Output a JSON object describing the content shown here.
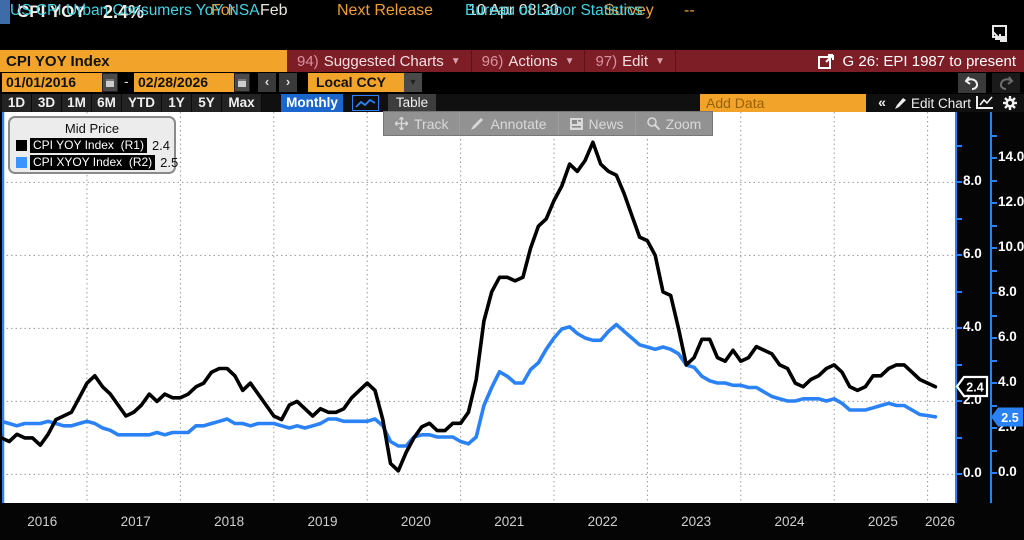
{
  "header": {
    "ticker": "CPI YOY",
    "value": "2.4%",
    "for_label": "For",
    "for_value": "Feb",
    "next_release_label": "Next Release",
    "next_release_value": "10 Apr 08:30",
    "survey_label": "Survey",
    "survey_value": "--",
    "description": "US CPI Urban Consumers YoY NSA",
    "source": "Bureau of Labor Statistics"
  },
  "menubar": {
    "security_input": "CPI YOY Index",
    "items": [
      {
        "num": "94)",
        "label": "Suggested Charts"
      },
      {
        "num": "96)",
        "label": "Actions"
      },
      {
        "num": "97)",
        "label": "Edit"
      }
    ],
    "chart_id": "G 26: EPI 1987 to present"
  },
  "rangebar": {
    "start_date": "01/01/2016",
    "dash": "-",
    "end_date": "02/28/2026",
    "prev": "‹",
    "next": "›",
    "currency": "Local CCY"
  },
  "toolbar": {
    "periods": [
      "1D",
      "3D",
      "1M",
      "6M",
      "YTD",
      "1Y",
      "5Y",
      "Max"
    ],
    "frequency": "Monthly",
    "table_label": "Table",
    "add_data_placeholder": "Add Data",
    "collapse_label": "«",
    "edit_chart_label": "Edit Chart"
  },
  "overlay_toolbar": {
    "buttons": [
      "Track",
      "Annotate",
      "News",
      "Zoom"
    ]
  },
  "legend": {
    "title": "Mid Price",
    "series": [
      {
        "swatch": "#000000",
        "label": "CPI YOY Index  (R1)",
        "value": "2.4"
      },
      {
        "swatch": "#3b93ff",
        "label": "CPI XYOY Index  (R2)",
        "value": "2.5"
      }
    ]
  },
  "colors": {
    "amber": "#f2a42a",
    "cyan": "#43d4e4",
    "red_bar": "#7d1e26",
    "blue_line": "#2a82f6",
    "black_line": "#000000",
    "freq_blue": "#1a66cc"
  },
  "chart_data": {
    "type": "line",
    "title": "CPI YOY Index vs CPI XYOY Index, monthly, Jan 2016 - Feb 2026",
    "x_start": "2016-01",
    "x_end": "2026-02",
    "x_tick_labels": [
      "2016",
      "2017",
      "2018",
      "2019",
      "2020",
      "2021",
      "2022",
      "2023",
      "2024",
      "2025",
      "2026"
    ],
    "grid": true,
    "series": [
      {
        "name": "CPI YOY Index",
        "axis": "R1",
        "color": "#000000",
        "last_value": 2.4,
        "values": [
          1.4,
          1.0,
          0.9,
          1.1,
          1.0,
          1.0,
          0.8,
          1.1,
          1.5,
          1.6,
          1.7,
          2.1,
          2.5,
          2.7,
          2.4,
          2.2,
          1.9,
          1.6,
          1.7,
          1.9,
          2.2,
          2.0,
          2.2,
          2.1,
          2.1,
          2.2,
          2.4,
          2.5,
          2.8,
          2.9,
          2.9,
          2.7,
          2.3,
          2.5,
          2.2,
          1.9,
          1.6,
          1.5,
          1.9,
          2.0,
          1.8,
          1.6,
          1.8,
          1.7,
          1.7,
          1.8,
          2.1,
          2.3,
          2.5,
          2.3,
          1.5,
          0.3,
          0.1,
          0.6,
          1.0,
          1.3,
          1.4,
          1.2,
          1.2,
          1.4,
          1.4,
          1.7,
          2.6,
          4.2,
          5.0,
          5.4,
          5.4,
          5.3,
          5.4,
          6.2,
          6.8,
          7.0,
          7.5,
          7.9,
          8.5,
          8.3,
          8.6,
          9.1,
          8.5,
          8.3,
          8.2,
          7.7,
          7.1,
          6.5,
          6.4,
          6.0,
          5.0,
          4.9,
          4.0,
          3.0,
          3.2,
          3.7,
          3.7,
          3.2,
          3.1,
          3.4,
          3.1,
          3.2,
          3.5,
          3.4,
          3.3,
          3.0,
          2.9,
          2.5,
          2.4,
          2.6,
          2.7,
          2.9,
          3.0,
          2.8,
          2.4,
          2.3,
          2.4,
          2.7,
          2.7,
          2.9,
          3.0,
          3.0,
          2.8,
          2.6,
          2.5,
          2.4
        ]
      },
      {
        "name": "CPI XYOY Index",
        "axis": "R2",
        "color": "#2a82f6",
        "last_value": 2.5,
        "values": [
          2.2,
          2.3,
          2.2,
          2.1,
          2.2,
          2.2,
          2.2,
          2.3,
          2.2,
          2.1,
          2.1,
          2.2,
          2.3,
          2.2,
          2.0,
          1.9,
          1.7,
          1.7,
          1.7,
          1.7,
          1.7,
          1.8,
          1.7,
          1.8,
          1.8,
          1.8,
          2.1,
          2.1,
          2.2,
          2.3,
          2.4,
          2.2,
          2.2,
          2.1,
          2.2,
          2.2,
          2.2,
          2.1,
          2.0,
          2.1,
          2.0,
          2.1,
          2.2,
          2.4,
          2.4,
          2.3,
          2.3,
          2.3,
          2.3,
          2.4,
          2.1,
          1.4,
          1.2,
          1.2,
          1.6,
          1.7,
          1.7,
          1.6,
          1.6,
          1.6,
          1.4,
          1.3,
          1.6,
          3.0,
          3.8,
          4.5,
          4.3,
          4.0,
          4.0,
          4.6,
          4.9,
          5.5,
          6.0,
          6.4,
          6.5,
          6.2,
          6.0,
          5.9,
          5.9,
          6.3,
          6.6,
          6.3,
          6.0,
          5.7,
          5.6,
          5.5,
          5.6,
          5.5,
          5.3,
          4.8,
          4.7,
          4.3,
          4.1,
          4.0,
          4.0,
          3.9,
          3.9,
          3.8,
          3.8,
          3.6,
          3.4,
          3.3,
          3.2,
          3.2,
          3.3,
          3.3,
          3.3,
          3.2,
          3.3,
          3.1,
          2.8,
          2.8,
          2.8,
          2.9,
          3.0,
          3.1,
          3.0,
          3.0,
          2.8,
          2.6,
          2.55,
          2.5
        ]
      }
    ],
    "axes": {
      "r1": {
        "side": "right-inner",
        "tick_step_labeled": 2,
        "labeled_ticks": [
          "0.0",
          "2.0",
          "4.0",
          "6.0",
          "8.0"
        ],
        "range_visible": [
          -0.8,
          9.9
        ],
        "badge": "2.4"
      },
      "r2": {
        "side": "right-outer",
        "tick_step_labeled": 2,
        "labeled_ticks": [
          "0.0",
          "2.0",
          "4.0",
          "6.0",
          "8.0",
          "10.0",
          "12.0",
          "14.0"
        ],
        "range_visible": [
          -1.0,
          16.0
        ],
        "badge": "2.5"
      }
    }
  }
}
